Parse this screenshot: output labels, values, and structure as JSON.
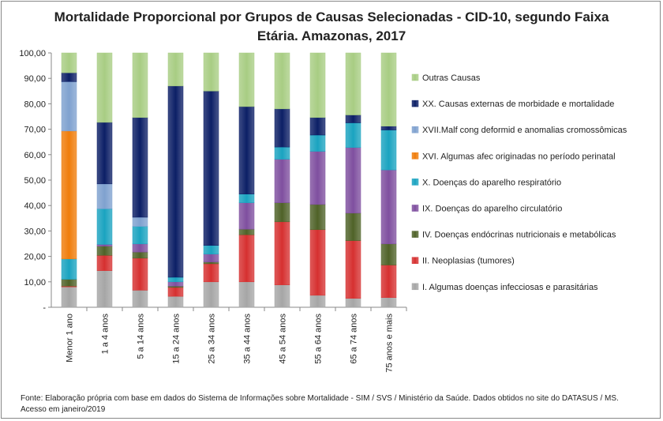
{
  "chart_data": {
    "type": "bar",
    "stacked": true,
    "title_line1": "Mortalidade Proporcional por Grupos de Causas Selecionadas - CID-10, segundo Faixa",
    "title_line2": "Etária. Amazonas, 2017",
    "ylim": [
      0,
      100
    ],
    "yticks": [
      "-",
      "10,00",
      "20,00",
      "30,00",
      "40,00",
      "50,00",
      "60,00",
      "70,00",
      "80,00",
      "90,00",
      "100,00"
    ],
    "grid": false,
    "legend_placement": "right",
    "categories": [
      "Menor 1 ano",
      "1 a 4 anos",
      "5 a 14 anos",
      "15 a 24 anos",
      "25 a 34 anos",
      "35 a 44 anos",
      "45 a 54 anos",
      "55 a 64 anos",
      "65 a 74 anos",
      "75 anos e mais"
    ],
    "series": [
      {
        "name": "I.   Algumas doenças infecciosas e parasitárias",
        "color": "#a6a6a6",
        "values": [
          8.0,
          14.4,
          6.7,
          4.3,
          10.0,
          10.0,
          8.8,
          4.7,
          3.5,
          3.8
        ]
      },
      {
        "name": "II.  Neoplasias (tumores)",
        "color": "#d63030",
        "values": [
          0.3,
          6.0,
          12.6,
          3.5,
          7.1,
          18.5,
          24.8,
          25.8,
          22.7,
          12.8
        ]
      },
      {
        "name": "IV.  Doenças endócrinas nutricionais e metabólicas",
        "color": "#4f6228",
        "values": [
          2.7,
          3.6,
          2.4,
          0.5,
          0.7,
          2.2,
          7.5,
          9.9,
          10.8,
          8.3
        ]
      },
      {
        "name": "IX.  Doenças do aparelho circulatório",
        "color": "#7f4f9f",
        "values": [
          0,
          0.7,
          3.2,
          1.7,
          3.1,
          10.4,
          17.1,
          20.9,
          25.8,
          29.1
        ]
      },
      {
        "name": "X.   Doenças do aparelho respiratório",
        "color": "#1aa3c0",
        "values": [
          8.0,
          14.0,
          6.9,
          1.8,
          3.4,
          3.4,
          4.8,
          6.4,
          9.7,
          15.7
        ]
      },
      {
        "name": "XVI. Algumas afec originadas no período perinatal",
        "color": "#f07d0b",
        "values": [
          50.3,
          0,
          0,
          0,
          0,
          0,
          0,
          0,
          0,
          0
        ]
      },
      {
        "name": "XVII.Malf cong deformid e anomalias cromossômicas",
        "color": "#7fa1cf",
        "values": [
          19.4,
          9.8,
          3.6,
          0,
          0,
          0,
          0,
          0,
          0,
          0
        ]
      },
      {
        "name": "XX.  Causas externas de morbidade e mortalidade",
        "color": "#0c1f66",
        "values": [
          3.5,
          24.2,
          39.2,
          75.2,
          60.7,
          34.4,
          15.0,
          6.9,
          3.1,
          1.5
        ]
      },
      {
        "name": "Outras Causas",
        "color": "#a8cd83",
        "values": [
          7.8,
          27.3,
          25.4,
          13.0,
          15.0,
          21.1,
          22.0,
          25.4,
          24.4,
          28.8
        ]
      }
    ]
  },
  "footer": {
    "line1": "Fonte: Elaboração própria com base em dados do  Sistema de Informações sobre Mortalidade - SIM / SVS / Ministério da Saúde. Dados obtidos no site do DATASUS / MS.",
    "line2": "Acesso em janeiro/2019"
  }
}
